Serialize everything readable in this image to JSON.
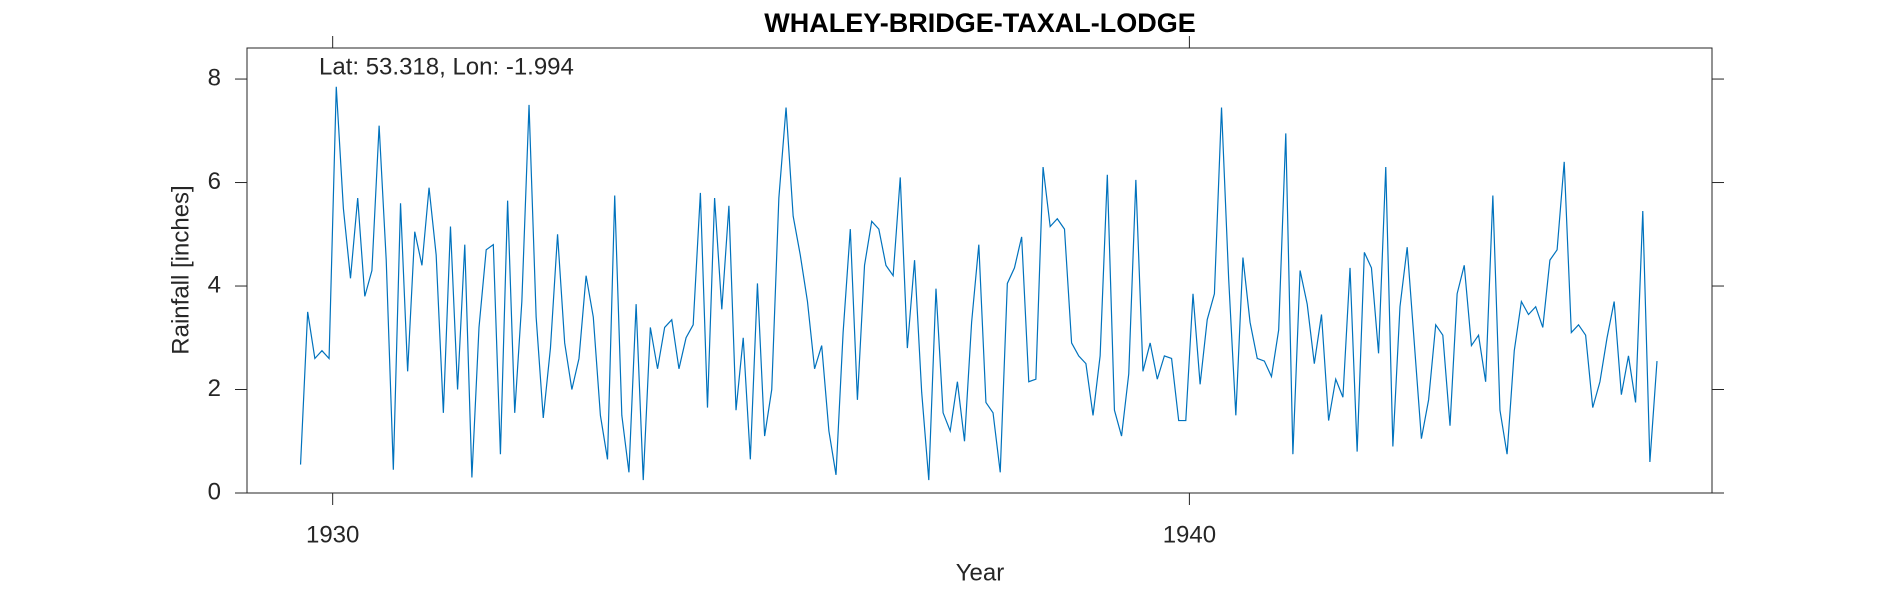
{
  "chart_data": {
    "type": "line",
    "title": "WHALEY-BRIDGE-TAXAL-LODGE",
    "annotation": "Lat: 53.318, Lon: -1.994",
    "xlabel": "Year",
    "ylabel": "Rainfall [inches]",
    "color": "#0072bd",
    "x": [
      1929.625,
      1929.708,
      1929.792,
      1929.875,
      1929.958,
      1930.042,
      1930.125,
      1930.208,
      1930.292,
      1930.375,
      1930.458,
      1930.542,
      1930.625,
      1930.708,
      1930.792,
      1930.875,
      1930.958,
      1931.042,
      1931.125,
      1931.208,
      1931.292,
      1931.375,
      1931.458,
      1931.542,
      1931.625,
      1931.708,
      1931.792,
      1931.875,
      1931.958,
      1932.042,
      1932.125,
      1932.208,
      1932.292,
      1932.375,
      1932.458,
      1932.542,
      1932.625,
      1932.708,
      1932.792,
      1932.875,
      1932.958,
      1933.042,
      1933.125,
      1933.208,
      1933.292,
      1933.375,
      1933.458,
      1933.542,
      1933.625,
      1933.708,
      1933.792,
      1933.875,
      1933.958,
      1934.042,
      1934.125,
      1934.208,
      1934.292,
      1934.375,
      1934.458,
      1934.542,
      1934.625,
      1934.708,
      1934.792,
      1934.875,
      1934.958,
      1935.042,
      1935.125,
      1935.208,
      1935.292,
      1935.375,
      1935.458,
      1935.542,
      1935.625,
      1935.708,
      1935.792,
      1935.875,
      1935.958,
      1936.042,
      1936.125,
      1936.208,
      1936.292,
      1936.375,
      1936.458,
      1936.542,
      1936.625,
      1936.708,
      1936.792,
      1936.875,
      1936.958,
      1937.042,
      1937.125,
      1937.208,
      1937.292,
      1937.375,
      1937.458,
      1937.542,
      1937.625,
      1937.708,
      1937.792,
      1937.875,
      1937.958,
      1938.042,
      1938.125,
      1938.208,
      1938.292,
      1938.375,
      1938.458,
      1938.542,
      1938.625,
      1938.708,
      1938.792,
      1938.875,
      1938.958,
      1939.042,
      1939.125,
      1939.208,
      1939.292,
      1939.375,
      1939.458,
      1939.542,
      1939.625,
      1939.708,
      1939.792,
      1939.875,
      1939.958,
      1940.042,
      1940.125,
      1940.208,
      1940.292,
      1940.375,
      1940.458,
      1940.542,
      1940.625,
      1940.708,
      1940.792,
      1940.875,
      1940.958,
      1941.042,
      1941.125,
      1941.208,
      1941.292,
      1941.375,
      1941.458,
      1941.542,
      1941.625,
      1941.708,
      1941.792,
      1941.875,
      1941.958,
      1942.042,
      1942.125,
      1942.208,
      1942.292,
      1942.375,
      1942.458,
      1942.542,
      1942.625,
      1942.708,
      1942.792,
      1942.875,
      1942.958,
      1943.042,
      1943.125,
      1943.208,
      1943.292,
      1943.375,
      1943.458,
      1943.542,
      1943.625,
      1943.708,
      1943.792,
      1943.875,
      1943.958,
      1944.042,
      1944.125,
      1944.208,
      1944.292,
      1944.375,
      1944.458,
      1944.542,
      1944.625,
      1944.708,
      1944.792,
      1944.875,
      1944.958,
      1945.042,
      1945.125,
      1945.208,
      1945.292,
      1945.375,
      1945.458
    ],
    "values": [
      0.55,
      3.5,
      2.6,
      2.75,
      2.6,
      7.85,
      5.5,
      4.15,
      5.7,
      3.8,
      4.3,
      7.1,
      4.5,
      0.45,
      5.6,
      2.35,
      5.05,
      4.4,
      5.9,
      4.6,
      1.55,
      5.15,
      2.0,
      4.8,
      0.3,
      3.2,
      4.7,
      4.8,
      0.75,
      5.65,
      1.55,
      3.7,
      7.5,
      3.4,
      1.45,
      2.8,
      5.0,
      2.9,
      2.0,
      2.6,
      4.2,
      3.4,
      1.5,
      0.65,
      5.75,
      1.5,
      0.4,
      3.65,
      0.25,
      3.2,
      2.4,
      3.2,
      3.35,
      2.4,
      3.0,
      3.25,
      5.8,
      1.65,
      5.7,
      3.55,
      5.55,
      1.6,
      3.0,
      0.65,
      4.05,
      1.1,
      2.0,
      5.7,
      7.45,
      5.35,
      4.6,
      3.7,
      2.4,
      2.85,
      1.2,
      0.35,
      3.1,
      5.1,
      1.8,
      4.4,
      5.25,
      5.1,
      4.4,
      4.2,
      6.1,
      2.8,
      4.5,
      1.95,
      0.25,
      3.95,
      1.55,
      1.2,
      2.15,
      1.0,
      3.3,
      4.8,
      1.75,
      1.55,
      0.4,
      4.05,
      4.35,
      4.95,
      2.15,
      2.2,
      6.3,
      5.15,
      5.3,
      5.1,
      2.9,
      2.65,
      2.5,
      1.5,
      2.65,
      6.15,
      1.6,
      1.1,
      2.3,
      6.05,
      2.35,
      2.9,
      2.2,
      2.65,
      2.6,
      1.4,
      1.4,
      3.85,
      2.1,
      3.35,
      3.85,
      7.45,
      4.15,
      1.5,
      4.55,
      3.3,
      2.6,
      2.55,
      2.25,
      3.15,
      6.95,
      0.75,
      4.3,
      3.65,
      2.5,
      3.45,
      1.4,
      2.2,
      1.85,
      4.35,
      0.8,
      4.65,
      4.35,
      2.7,
      6.3,
      0.9,
      3.6,
      4.75,
      2.9,
      1.05,
      1.8,
      3.25,
      3.05,
      1.3,
      3.85,
      4.4,
      2.85,
      3.05,
      2.15,
      5.75,
      1.6,
      0.75,
      2.75,
      3.7,
      3.45,
      3.6,
      3.2,
      4.5,
      4.7,
      6.4,
      3.1,
      3.25,
      3.05,
      1.65,
      2.15,
      3.0,
      3.7,
      1.9,
      2.65,
      1.75,
      5.45,
      0.6,
      2.55
    ],
    "xlim": [
      1929,
      1946.1
    ],
    "xticks": [
      1930,
      1940
    ],
    "ylim": [
      0,
      8.6
    ],
    "yticks": [
      0,
      2,
      4,
      6,
      8
    ]
  }
}
